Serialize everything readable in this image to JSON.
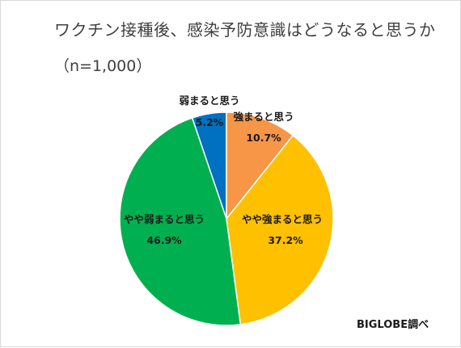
{
  "chart_data": {
    "type": "pie",
    "title": "ワクチン接種後、感染予防意識はどうなると思うか",
    "subtitle": "（n=1,000）",
    "categories": [
      "弱まると思う",
      "強まると思う",
      "やや強まると思う",
      "やや弱まると思う"
    ],
    "values": [
      5.2,
      10.7,
      37.2,
      46.9
    ],
    "value_labels": [
      "5.2%",
      "10.7%",
      "37.2%",
      "46.9%"
    ],
    "colors": [
      "#0070c0",
      "#f79646",
      "#ffc000",
      "#00b050"
    ],
    "legend": "none"
  },
  "source": "BIGLOBE調べ"
}
